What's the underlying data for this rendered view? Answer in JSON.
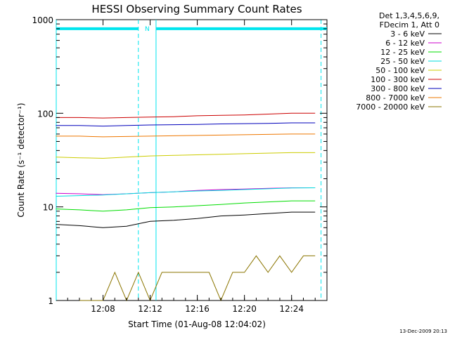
{
  "chart_data": {
    "type": "line",
    "title": "HESSI Observing Summary Count Rates",
    "xlabel": "Start Time (01-Aug-08 12:04:02)",
    "ylabel": "Count Rate (s⁻¹ detector⁻¹)",
    "y_scale": "log",
    "ylim": [
      1,
      1000
    ],
    "xlim": [
      "12:04:02",
      "12:27:00"
    ],
    "x_ticks": [
      "12:08",
      "12:12",
      "12:16",
      "12:20",
      "12:24"
    ],
    "y_ticks": [
      "1",
      "10",
      "100",
      "1000"
    ],
    "grid": false,
    "legend_placement": "right",
    "legend_header": [
      "Det 1,3,4,5,6,9,",
      "FDecim 1, Att 0"
    ],
    "flag_bar": {
      "label": "N",
      "color": "#00e5ee",
      "value": 800,
      "segments": [
        [
          "12:04:02",
          "12:11:00"
        ],
        [
          "12:12:30",
          "12:27:00"
        ]
      ]
    },
    "vlines": [
      {
        "x": "12:04:02",
        "style": "solid",
        "color": "#00e5ee"
      },
      {
        "x": "12:11:00",
        "style": "dashed",
        "color": "#00e5ee"
      },
      {
        "x": "12:12:30",
        "style": "solid",
        "color": "#00e5ee"
      },
      {
        "x": "12:26:30",
        "style": "dashed",
        "color": "#00e5ee"
      }
    ],
    "series": [
      {
        "name": "3 - 6 keV",
        "color": "#000000",
        "x": [
          "12:04",
          "12:06",
          "12:08",
          "12:10",
          "12:12",
          "12:14",
          "12:16",
          "12:18",
          "12:20",
          "12:22",
          "12:24",
          "12:26"
        ],
        "values": [
          6.5,
          6.3,
          6.0,
          6.2,
          7.0,
          7.2,
          7.5,
          8.0,
          8.2,
          8.5,
          8.8,
          8.8
        ]
      },
      {
        "name": "6 - 12 keV",
        "color": "#cc00cc",
        "x": [
          "12:04",
          "12:06",
          "12:08",
          "12:10",
          "12:12",
          "12:14",
          "12:16",
          "12:18",
          "12:20",
          "12:22",
          "12:24",
          "12:26"
        ],
        "values": [
          14,
          13.8,
          13.5,
          13.8,
          14.2,
          14.5,
          15.0,
          15.3,
          15.5,
          15.8,
          16.0,
          16.0
        ]
      },
      {
        "name": "12 - 25 keV",
        "color": "#00dd00",
        "x": [
          "12:04",
          "12:06",
          "12:08",
          "12:10",
          "12:12",
          "12:14",
          "12:16",
          "12:18",
          "12:20",
          "12:22",
          "12:24",
          "12:26"
        ],
        "values": [
          9.5,
          9.3,
          9.0,
          9.3,
          9.8,
          10.0,
          10.3,
          10.6,
          11.0,
          11.3,
          11.6,
          11.6
        ]
      },
      {
        "name": "25 - 50 keV",
        "color": "#00dddd",
        "x": [
          "12:04",
          "12:06",
          "12:08",
          "12:10",
          "12:12",
          "12:14",
          "12:16",
          "12:18",
          "12:20",
          "12:22",
          "12:24",
          "12:26"
        ],
        "values": [
          13,
          13.2,
          13.4,
          13.8,
          14.2,
          14.5,
          14.8,
          15.0,
          15.3,
          15.6,
          15.9,
          16.0
        ]
      },
      {
        "name": "50 - 100 keV",
        "color": "#cccc00",
        "x": [
          "12:04",
          "12:06",
          "12:08",
          "12:10",
          "12:12",
          "12:14",
          "12:16",
          "12:18",
          "12:20",
          "12:22",
          "12:24",
          "12:26"
        ],
        "values": [
          34,
          33.5,
          33,
          34,
          35,
          35.5,
          36,
          36.5,
          37,
          37.5,
          38,
          38
        ]
      },
      {
        "name": "100 - 300 keV",
        "color": "#cc0000",
        "x": [
          "12:04",
          "12:06",
          "12:08",
          "12:10",
          "12:12",
          "12:14",
          "12:16",
          "12:18",
          "12:20",
          "12:22",
          "12:24",
          "12:26"
        ],
        "values": [
          90,
          90,
          89,
          90,
          91,
          92,
          94,
          95,
          96,
          98,
          100,
          100
        ]
      },
      {
        "name": "300 - 800 keV",
        "color": "#0000bb",
        "x": [
          "12:04",
          "12:06",
          "12:08",
          "12:10",
          "12:12",
          "12:14",
          "12:16",
          "12:18",
          "12:20",
          "12:22",
          "12:24",
          "12:26"
        ],
        "values": [
          74,
          74,
          73,
          74,
          75,
          75.5,
          76,
          77,
          77.5,
          78,
          79,
          79
        ]
      },
      {
        "name": "800 - 7000 keV",
        "color": "#ee7700",
        "x": [
          "12:04",
          "12:06",
          "12:08",
          "12:10",
          "12:12",
          "12:14",
          "12:16",
          "12:18",
          "12:20",
          "12:22",
          "12:24",
          "12:26"
        ],
        "values": [
          57,
          57,
          56,
          56.5,
          57,
          57.5,
          58,
          58.5,
          59,
          59.5,
          60,
          60
        ]
      },
      {
        "name": "7000 - 20000 keV",
        "color": "#8b7500",
        "x": [
          "12:06",
          "12:07",
          "12:08",
          "12:09",
          "12:10",
          "12:11",
          "12:12",
          "12:13",
          "12:14",
          "12:15",
          "12:16",
          "12:17",
          "12:18",
          "12:19",
          "12:20",
          "12:21",
          "12:22",
          "12:23",
          "12:24",
          "12:25",
          "12:26"
        ],
        "values": [
          1,
          1,
          1,
          2,
          1,
          2,
          1,
          2,
          2,
          2,
          2,
          2,
          1,
          2,
          2,
          3,
          2,
          3,
          2,
          3,
          3
        ]
      }
    ],
    "date_stamp": "13-Dec-2009 20:13"
  }
}
